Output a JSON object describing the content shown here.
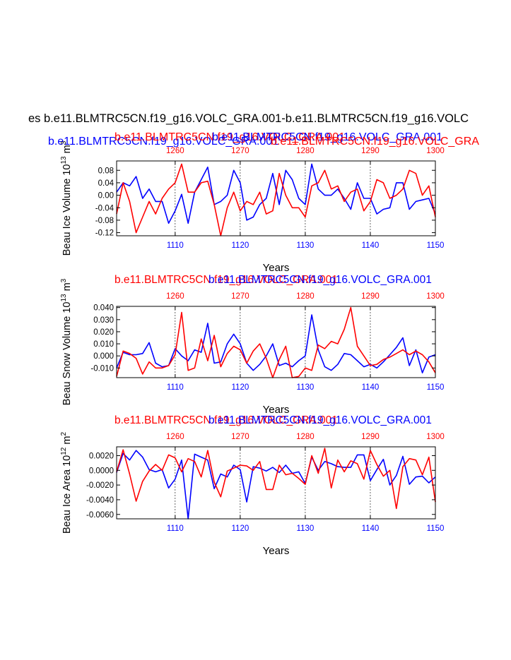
{
  "main_title": "es b.e11.BLMTRC5CN.f19_g16.VOLC_GRA.001-b.e11.BLMTRC5CN.f19_g16.VOLC",
  "overlap_titles": {
    "blue": "b.e11.BLMTRC5CN.f19_g16.VOLC_GRA.001",
    "red": "b.e11.BLMTRC5CN.f19_g16.VOLC_GRA.001",
    "blue_right": "b.e11.BLMTRC5CN.f19_g16.VOLC_GRA.001",
    "red_right": "b.e11.BLMTRC5CN.f19_g16.VOLC_GRA"
  },
  "colors": {
    "blue": "#0000ff",
    "red": "#ff0000",
    "black": "#000000",
    "grid": "#000000"
  },
  "chart_data": [
    {
      "type": "line",
      "name": "ice-volume",
      "top_label_red": "b.e11.BLMTRC5CN.f19_g16.VOLC_GRA.001",
      "top_label_blue": "b.e11.BLMTRC5CN.f19_g16.VOLC_GRA.001",
      "ylabel": "Beau Ice Volume 10",
      "ylabel_exp": "13",
      "ylabel_unit": " m",
      "ylabel_unit_exp": "3",
      "xlabel": "Years",
      "ylim": [
        -0.13,
        0.11
      ],
      "yticks": [
        0.08,
        0.04,
        0.0,
        -0.04,
        -0.08,
        -0.12
      ],
      "ytick_labels": [
        "0.08",
        "0.04",
        "0.00",
        "-0.04",
        "-0.08",
        "-0.12"
      ],
      "x_bottom": [
        1101,
        1150
      ],
      "bottom_ticks": [
        1110,
        1120,
        1130,
        1140,
        1150
      ],
      "x_top": [
        1251,
        1300
      ],
      "top_ticks": [
        1260,
        1270,
        1280,
        1290,
        1300
      ],
      "series": [
        {
          "name": "blue",
          "x_offset": 1100,
          "values": [
            0.01,
            0.04,
            0.03,
            0.06,
            -0.01,
            0.02,
            -0.02,
            -0.02,
            -0.09,
            -0.05,
            0.003,
            -0.09,
            0.01,
            0.05,
            0.09,
            -0.03,
            -0.02,
            0.0,
            0.08,
            0.04,
            -0.08,
            -0.07,
            -0.03,
            -0.01,
            0.07,
            -0.03,
            0.08,
            0.05,
            -0.01,
            -0.03,
            0.1,
            0.02,
            0.0,
            0.0,
            0.02,
            -0.01,
            -0.045,
            0.04,
            -0.01,
            -0.01,
            -0.06,
            -0.045,
            -0.04,
            0.04,
            0.04,
            -0.045,
            -0.02,
            -0.015,
            -0.01,
            -0.06
          ]
        },
        {
          "name": "red",
          "x_offset": 1250,
          "values": [
            -0.06,
            0.04,
            -0.02,
            -0.12,
            -0.07,
            -0.02,
            -0.06,
            -0.01,
            0.02,
            0.04,
            0.1,
            0.01,
            0.01,
            0.04,
            0.045,
            -0.03,
            -0.13,
            -0.04,
            0.01,
            -0.05,
            -0.02,
            -0.03,
            0.01,
            -0.06,
            -0.05,
            0.07,
            0.0,
            -0.04,
            -0.04,
            -0.07,
            0.03,
            0.04,
            0.08,
            0.02,
            0.03,
            -0.02,
            0.01,
            0.02,
            -0.05,
            -0.02,
            0.05,
            0.04,
            -0.01,
            0.0,
            0.02,
            0.08,
            0.07,
            0.0,
            0.03,
            -0.07
          ]
        }
      ]
    },
    {
      "type": "line",
      "name": "snow-volume",
      "top_label_red": "b.e11.BLMTRC5CN.f19_g16.VOLC_GRA.001",
      "top_label_blue": "b.e11.BLMTRC5CN.f19_g16.VOLC_GRA.001",
      "ylabel": "Beau Snow Volume 10",
      "ylabel_exp": "13",
      "ylabel_unit": " m",
      "ylabel_unit_exp": "3",
      "xlabel": "Years",
      "ylim": [
        -0.018,
        0.041
      ],
      "yticks": [
        0.04,
        0.03,
        0.02,
        0.01,
        0.0,
        -0.01
      ],
      "ytick_labels": [
        "0.040",
        "0.030",
        "0.020",
        "0.010",
        "0.000",
        "-0.010"
      ],
      "x_bottom": [
        1101,
        1150
      ],
      "bottom_ticks": [
        1110,
        1120,
        1130,
        1140,
        1150
      ],
      "x_top": [
        1251,
        1300
      ],
      "top_ticks": [
        1260,
        1270,
        1280,
        1290,
        1300
      ],
      "series": [
        {
          "name": "blue",
          "x_offset": 1100,
          "values": [
            -0.01,
            0.003,
            0.001,
            0.001,
            0.002,
            0.011,
            -0.006,
            -0.009,
            -0.008,
            0.006,
            0.0,
            -0.004,
            0.005,
            0.003,
            0.027,
            -0.006,
            -0.005,
            0.01,
            0.018,
            0.01,
            -0.006,
            -0.012,
            -0.007,
            0.0,
            0.01,
            -0.008,
            -0.006,
            -0.009,
            -0.004,
            0.0,
            0.034,
            0.005,
            -0.009,
            -0.012,
            -0.007,
            0.002,
            0.001,
            -0.004,
            -0.009,
            -0.007,
            -0.01,
            -0.005,
            0.001,
            0.007,
            0.015,
            -0.008,
            0.005,
            -0.014,
            -0.001,
            0.001
          ]
        },
        {
          "name": "red",
          "x_offset": 1250,
          "values": [
            -0.017,
            0.004,
            0.002,
            -0.002,
            -0.015,
            -0.005,
            -0.01,
            -0.01,
            -0.008,
            0.001,
            0.036,
            -0.012,
            -0.01,
            0.014,
            -0.004,
            0.017,
            -0.009,
            0.002,
            0.008,
            0.005,
            -0.006,
            0.004,
            0.01,
            -0.002,
            -0.018,
            -0.003,
            0.008,
            -0.018,
            -0.017,
            -0.01,
            -0.012,
            0.009,
            0.006,
            0.012,
            0.01,
            0.022,
            0.04,
            0.008,
            0.0,
            -0.008,
            -0.007,
            -0.003,
            -0.001,
            0.002,
            0.005,
            0.001,
            0.004,
            0.001,
            -0.005,
            -0.014
          ]
        }
      ]
    },
    {
      "type": "line",
      "name": "ice-area",
      "top_label_red": "b.e11.BLMTRC5CN.f19_g16.VOLC_GRA.001",
      "top_label_blue": "b.e11.BLMTRC5CN.f19_g16.VOLC_GRA.001",
      "ylabel": "Beau Ice Area 10",
      "ylabel_exp": "12",
      "ylabel_unit": " m",
      "ylabel_unit_exp": "2",
      "xlabel": "Years",
      "ylim": [
        -0.0066,
        0.0032
      ],
      "yticks": [
        0.002,
        0.0,
        -0.002,
        -0.004,
        -0.006
      ],
      "ytick_labels": [
        "0.0020",
        "0.0000",
        "-0.0020",
        "-0.0040",
        "-0.0060"
      ],
      "x_bottom": [
        1101,
        1150
      ],
      "bottom_ticks": [
        1110,
        1120,
        1130,
        1140,
        1150
      ],
      "x_top": [
        1251,
        1300
      ],
      "top_ticks": [
        1260,
        1270,
        1280,
        1290,
        1300
      ],
      "series": [
        {
          "name": "blue",
          "x_offset": 1100,
          "values": [
            -0.0003,
            0.0023,
            0.0014,
            0.0027,
            0.0018,
            0.0001,
            -0.0002,
            0.0001,
            -0.0024,
            -0.0012,
            0.0014,
            -0.0066,
            0.0022,
            0.0018,
            0.0014,
            -0.0025,
            -0.0005,
            -0.0009,
            0.0007,
            0.0001,
            -0.0043,
            0.0005,
            0.0003,
            -0.0001,
            0.0004,
            -0.0003,
            0.0007,
            -0.0004,
            -0.0002,
            -0.0018,
            0.0018,
            0.0,
            0.0012,
            0.0009,
            0.0005,
            0.0004,
            0.0004,
            0.0021,
            0.0021,
            -0.0014,
            0.0001,
            0.0015,
            -0.002,
            -0.0007,
            0.0019,
            -0.0019,
            -0.0009,
            -0.0008,
            -0.0017,
            -0.0009
          ]
        },
        {
          "name": "red",
          "x_offset": 1250,
          "values": [
            -0.0002,
            0.0028,
            -0.0005,
            -0.0042,
            -0.0015,
            -0.0001,
            0.0008,
            0.0,
            0.0021,
            0.0017,
            -0.0002,
            0.0016,
            0.0012,
            -0.0009,
            0.0027,
            -0.0016,
            -0.0036,
            -0.0001,
            0.0003,
            0.0007,
            0.0006,
            0.0,
            0.0012,
            -0.0026,
            -0.0026,
            0.0007,
            -0.0006,
            -0.0004,
            -0.0011,
            -0.0019,
            0.002,
            -0.0004,
            0.003,
            -0.0024,
            0.0014,
            -0.0002,
            0.0013,
            0.0009,
            -0.0012,
            0.0027,
            0.0008,
            -0.0008,
            0.0,
            -0.0052,
            0.0005,
            0.0016,
            0.0014,
            -0.0006,
            0.0018,
            -0.0043
          ]
        }
      ]
    }
  ]
}
